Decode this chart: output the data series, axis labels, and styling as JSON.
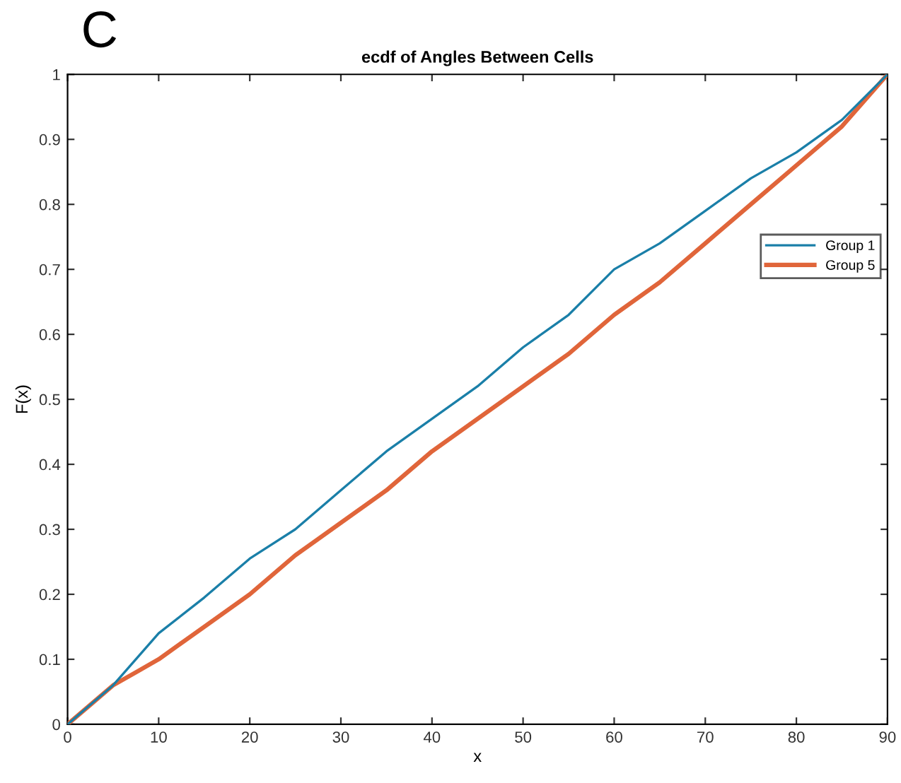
{
  "chart_data": {
    "type": "line",
    "title": "ecdf of Angles Between Cells",
    "xlabel": "x",
    "ylabel": "F(x)",
    "annotations": [
      "C"
    ],
    "x": [
      0,
      2.5,
      5,
      7.5,
      10,
      15,
      20,
      25,
      30,
      35,
      40,
      45,
      50,
      55,
      60,
      65,
      70,
      75,
      80,
      85,
      90
    ],
    "series": [
      {
        "name": "Group 1",
        "color": "#1a7fa8",
        "values": [
          0,
          0.03,
          0.06,
          0.1,
          0.14,
          0.195,
          0.255,
          0.3,
          0.36,
          0.42,
          0.47,
          0.52,
          0.58,
          0.63,
          0.7,
          0.74,
          0.79,
          0.84,
          0.88,
          0.93,
          1
        ]
      },
      {
        "name": "Group 5",
        "color": "#e0653a",
        "values": [
          0,
          0.03,
          0.06,
          0.08,
          0.1,
          0.15,
          0.2,
          0.26,
          0.31,
          0.36,
          0.42,
          0.47,
          0.52,
          0.57,
          0.63,
          0.68,
          0.74,
          0.8,
          0.86,
          0.92,
          1
        ]
      }
    ],
    "xlim": [
      0,
      90
    ],
    "ylim": [
      0,
      1
    ],
    "xticks": [
      0,
      10,
      20,
      30,
      40,
      50,
      60,
      70,
      80,
      90
    ],
    "yticks": [
      0,
      0.1,
      0.2,
      0.3,
      0.4,
      0.5,
      0.6,
      0.7,
      0.8,
      0.9,
      1
    ],
    "grid": false,
    "legend": "right"
  }
}
